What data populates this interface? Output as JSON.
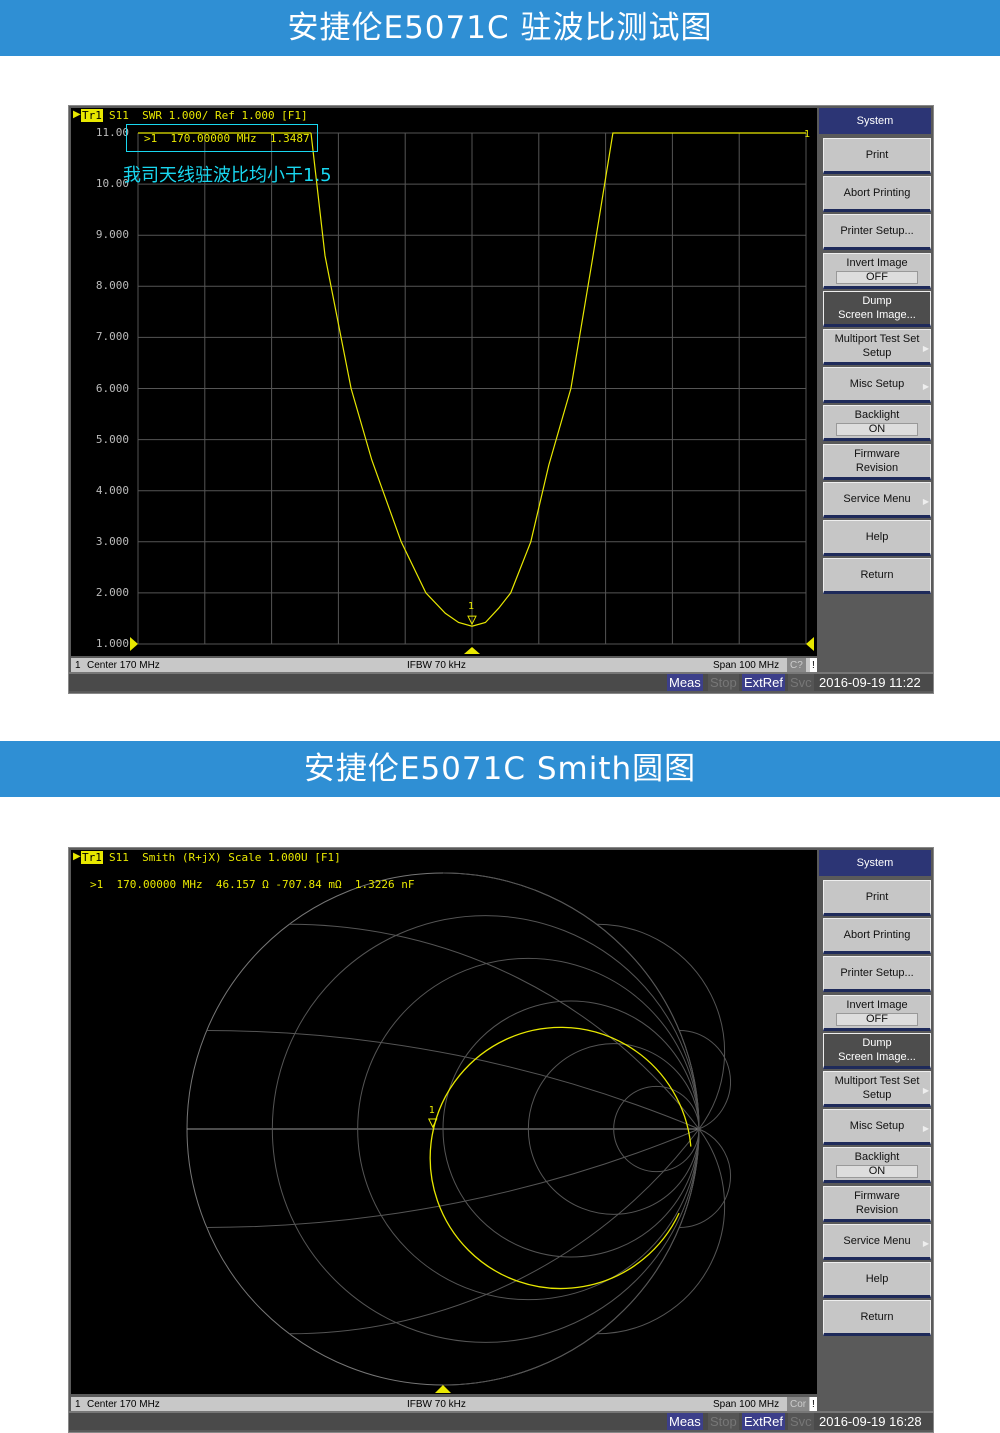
{
  "banners": [
    "安捷伦E5071C  驻波比测试图",
    "安捷伦E5071C  Smith圆图"
  ],
  "colors": {
    "banner": "#2f8fd4",
    "trace": "#e8e800",
    "grid": "#555555",
    "annotation": "#19d7f0",
    "menu_header": "#2c3575"
  },
  "softkeys": {
    "header": "System",
    "items": [
      {
        "label": "Print"
      },
      {
        "label": "Abort Printing"
      },
      {
        "label": "Printer Setup..."
      },
      {
        "label": "Invert Image",
        "value": "OFF"
      },
      {
        "label": "Dump",
        "label2": "Screen Image...",
        "active": true
      },
      {
        "label": "Multiport Test Set",
        "label2": "Setup",
        "arrow": true
      },
      {
        "label": "Misc Setup",
        "arrow": true
      },
      {
        "label": "Backlight",
        "value": "ON"
      },
      {
        "label": "Firmware",
        "label2": "Revision"
      },
      {
        "label": "Service Menu",
        "arrow": true
      },
      {
        "label": "Help"
      },
      {
        "label": "Return"
      }
    ]
  },
  "swr_panel": {
    "trace_label": "Tr1",
    "trace_header": "S11  SWR 1.000/ Ref 1.000 [F1]",
    "marker_readout": ">1  170.00000 MHz  1.3487",
    "annotation": "我司天线驻波比均小于1.5",
    "marker_label": "1",
    "y_ticks": [
      "11.00",
      "10.00",
      "9.000",
      "8.000",
      "7.000",
      "6.000",
      "5.000",
      "4.000",
      "3.000",
      "2.000",
      "1.000"
    ],
    "status": {
      "channel": "1",
      "center": "Center 170 MHz",
      "ifbw": "IFBW 70 kHz",
      "span": "Span 100 MHz",
      "c": "C?",
      "bang": "!"
    },
    "bottom": {
      "meas": "Meas",
      "stop": "Stop",
      "extref": "ExtRef",
      "svc": "Svc",
      "datetime": "2016-09-19 11:22"
    }
  },
  "smith_panel": {
    "trace_label": "Tr1",
    "trace_header": "S11  Smith (R+jX) Scale 1.000U [F1]",
    "marker_readout": ">1  170.00000 MHz  46.157 Ω -707.84 mΩ  1.3226 nF",
    "marker_label": "1",
    "status": {
      "channel": "1",
      "center": "Center 170 MHz",
      "ifbw": "IFBW 70 kHz",
      "span": "Span 100 MHz",
      "c": "Cor",
      "bang": "!"
    },
    "bottom": {
      "meas": "Meas",
      "stop": "Stop",
      "extref": "ExtRef",
      "svc": "Svc",
      "datetime": "2016-09-19 16:28"
    }
  },
  "chart_data": [
    {
      "type": "line",
      "title": "S11 SWR 1.000/ Ref 1.000 [F1]",
      "xlim": [
        120,
        220
      ],
      "ylim": [
        1,
        11
      ],
      "grid": true,
      "x": [
        145.9,
        148,
        151.9,
        155,
        159.4,
        163.1,
        166,
        168,
        170,
        172,
        174,
        175.8,
        178.8,
        181.5,
        184.8,
        188,
        191.1
      ],
      "y": [
        11,
        8.6,
        6.0,
        4.6,
        3.0,
        2.0,
        1.6,
        1.42,
        1.3487,
        1.42,
        1.7,
        2.0,
        3.0,
        4.5,
        6.0,
        8.5,
        11
      ],
      "marker": {
        "x": 170,
        "y": 1.3487
      }
    },
    {
      "type": "scatter",
      "title": "S11 Smith (R+jX) Scale 1.000U [F1]",
      "marker": {
        "freq_mhz": 170,
        "r_ohm": 46.157,
        "x_mohm": -707.84,
        "c_nf": 1.3226
      }
    }
  ]
}
